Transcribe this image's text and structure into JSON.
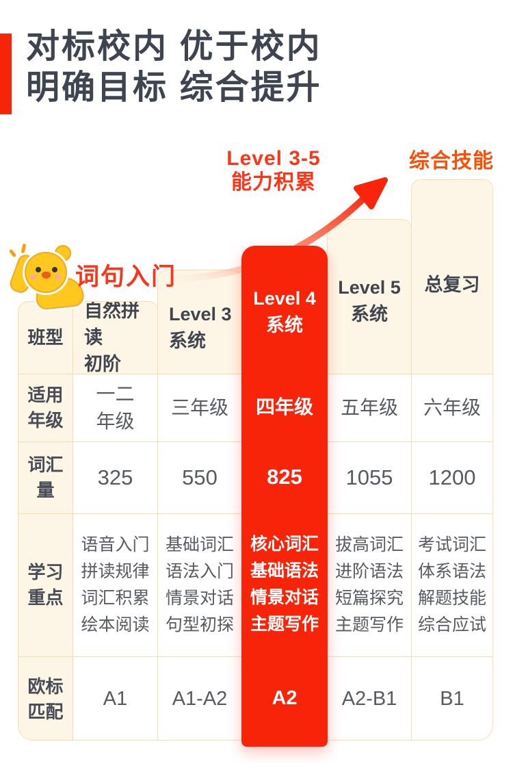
{
  "title": {
    "line1": "对标校内 优于校内",
    "line2": "明确目标 综合提升"
  },
  "annotations": {
    "growth_label_line1": "Level 3-5",
    "growth_label_line2": "能力积累",
    "top_skill_label": "综合技能",
    "entry_label": "词句入门",
    "mascot": "chick-mascot",
    "arrow": "growth-arrow-up-right"
  },
  "colors": {
    "accent_red": "#F8240A",
    "label_red": "#FB3517",
    "orange": "#FC4F06",
    "title_dark": "#3E4551",
    "cream": "#FDF6E7",
    "border": "#F8DCB0",
    "mascot_yellow": "#FFC81E"
  },
  "table": {
    "row_labels": [
      [
        "班型"
      ],
      [
        "适用",
        "年级"
      ],
      [
        "词汇",
        "量"
      ],
      [
        "学习",
        "重点"
      ],
      [
        "欧标",
        "匹配"
      ]
    ],
    "columns": [
      {
        "id": "natural-phonics",
        "header_lines": [
          "自然拼读",
          "初阶"
        ],
        "grade_lines": [
          "一二",
          "年级"
        ],
        "vocab": "325",
        "focus": [
          "语音入门",
          "拼读规律",
          "词汇积累",
          "绘本阅读"
        ],
        "cefr": "A1",
        "highlight": false
      },
      {
        "id": "level-3",
        "header_lines": [
          "Level 3",
          "系统"
        ],
        "grade_lines": [
          "三年级"
        ],
        "vocab": "550",
        "focus": [
          "基础词汇",
          "语法入门",
          "情景对话",
          "句型初探"
        ],
        "cefr": "A1-A2",
        "highlight": false
      },
      {
        "id": "level-4",
        "header_lines": [
          "Level 4",
          "系统"
        ],
        "grade_lines": [
          "四年级"
        ],
        "vocab": "825",
        "focus": [
          "核心词汇",
          "基础语法",
          "情景对话",
          "主题写作"
        ],
        "cefr": "A2",
        "highlight": true
      },
      {
        "id": "level-5",
        "header_lines": [
          "Level 5",
          "系统"
        ],
        "grade_lines": [
          "五年级"
        ],
        "vocab": "1055",
        "focus": [
          "拔高词汇",
          "进阶语法",
          "短篇探究",
          "主题写作"
        ],
        "cefr": "A2-B1",
        "highlight": false
      },
      {
        "id": "final-review",
        "header_lines": [
          "总复习"
        ],
        "grade_lines": [
          "六年级"
        ],
        "vocab": "1200",
        "focus": [
          "考试词汇",
          "体系语法",
          "解题技能",
          "综合应试"
        ],
        "cefr": "B1",
        "highlight": false
      }
    ]
  },
  "chart_data": {
    "type": "table",
    "title": "对标校内 优于校内 明确目标 综合提升",
    "annotations": [
      "词句入门",
      "Level 3-5 能力积累",
      "综合技能"
    ],
    "row_headers": [
      "班型",
      "适用年级",
      "词汇量",
      "学习重点",
      "欧标匹配"
    ],
    "columns": [
      "自然拼读初阶",
      "Level 3 系统",
      "Level 4 系统",
      "Level 5 系统",
      "总复习"
    ],
    "rows": {
      "适用年级": [
        "一二年级",
        "三年级",
        "四年级",
        "五年级",
        "六年级"
      ],
      "词汇量": [
        325,
        550,
        825,
        1055,
        1200
      ],
      "学习重点": [
        "语音入门 拼读规律 词汇积累 绘本阅读",
        "基础词汇 语法入门 情景对话 句型初探",
        "核心词汇 基础语法 情景对话 主题写作",
        "拔高词汇 进阶语法 短篇探究 主题写作",
        "考试词汇 体系语法 解题技能 综合应试"
      ],
      "欧标匹配": [
        "A1",
        "A1-A2",
        "A2",
        "A2-B1",
        "B1"
      ]
    },
    "highlighted_column": "Level 4 系统",
    "layout": "stair-step columns rising left to right, Level 4 column highlighted red"
  }
}
